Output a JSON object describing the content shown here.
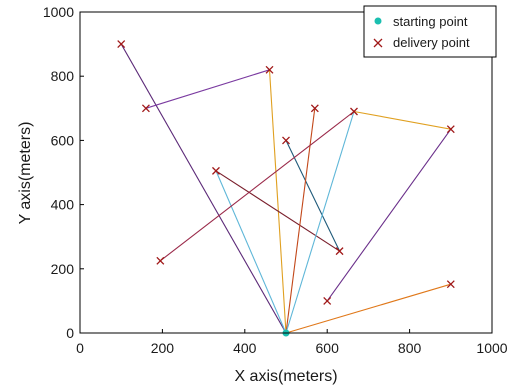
{
  "chart_data": {
    "type": "scatter",
    "xlabel": "X axis(meters)",
    "ylabel": "Y axis(meters)",
    "xlim": [
      0,
      1000
    ],
    "ylim": [
      0,
      1000
    ],
    "xticks": [
      0,
      200,
      400,
      600,
      800,
      1000
    ],
    "yticks": [
      0,
      200,
      400,
      600,
      800,
      1000
    ],
    "grid": false,
    "legend_position": "top-right",
    "legend": [
      {
        "label": "starting point",
        "marker": "dot",
        "color": "#1abfb0"
      },
      {
        "label": "delivery point",
        "marker": "x",
        "color": "#a01818"
      }
    ],
    "starting_point": {
      "x": 500,
      "y": 0
    },
    "delivery_points": [
      {
        "x": 100,
        "y": 900
      },
      {
        "x": 160,
        "y": 700
      },
      {
        "x": 195,
        "y": 225
      },
      {
        "x": 330,
        "y": 505
      },
      {
        "x": 460,
        "y": 820
      },
      {
        "x": 500,
        "y": 600
      },
      {
        "x": 570,
        "y": 700
      },
      {
        "x": 600,
        "y": 100
      },
      {
        "x": 630,
        "y": 255
      },
      {
        "x": 665,
        "y": 690
      },
      {
        "x": 900,
        "y": 635
      },
      {
        "x": 900,
        "y": 152
      }
    ],
    "routes": [
      {
        "color": "#5c2a78",
        "points": [
          [
            500,
            0
          ],
          [
            100,
            900
          ]
        ]
      },
      {
        "color": "#7a3aa0",
        "points": [
          [
            160,
            700
          ],
          [
            460,
            820
          ]
        ]
      },
      {
        "color": "#e0a020",
        "points": [
          [
            460,
            820
          ],
          [
            500,
            0
          ]
        ]
      },
      {
        "color": "#5fb7d8",
        "points": [
          [
            500,
            0
          ],
          [
            330,
            505
          ]
        ]
      },
      {
        "color": "#7a1f2c",
        "points": [
          [
            330,
            505
          ],
          [
            630,
            255
          ]
        ]
      },
      {
        "color": "#1f5a7a",
        "points": [
          [
            500,
            600
          ],
          [
            630,
            255
          ]
        ]
      },
      {
        "color": "#c2481a",
        "points": [
          [
            500,
            0
          ],
          [
            570,
            700
          ]
        ]
      },
      {
        "color": "#5fb7d8",
        "points": [
          [
            500,
            0
          ],
          [
            665,
            690
          ]
        ]
      },
      {
        "color": "#e0a020",
        "points": [
          [
            665,
            690
          ],
          [
            900,
            635
          ]
        ]
      },
      {
        "color": "#9a2a4a",
        "points": [
          [
            195,
            225
          ],
          [
            665,
            690
          ]
        ]
      },
      {
        "color": "#6a2f8a",
        "points": [
          [
            600,
            100
          ],
          [
            900,
            635
          ]
        ]
      },
      {
        "color": "#e0781a",
        "points": [
          [
            500,
            0
          ],
          [
            900,
            152
          ]
        ]
      }
    ]
  }
}
